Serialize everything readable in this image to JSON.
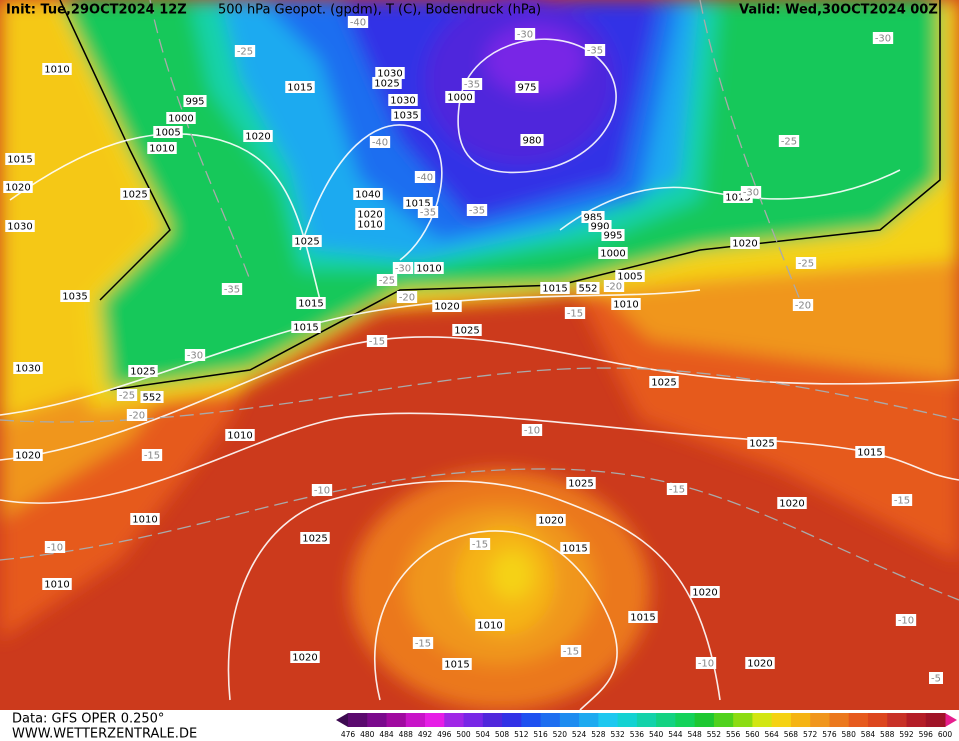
{
  "header": {
    "init": "Init: Tue,29OCT2024 12Z",
    "title": "500 hPa Geopot. (gpdm), T (C), Bodendruck (hPa)",
    "valid": "Valid: Wed,30OCT2024 00Z"
  },
  "footer": {
    "data": "Data: GFS OPER 0.250°",
    "site": "WWW.WETTERZENTRALE.DE"
  },
  "colorbar": {
    "values": [
      476,
      480,
      484,
      488,
      492,
      496,
      500,
      504,
      508,
      512,
      516,
      520,
      524,
      528,
      532,
      536,
      540,
      544,
      548,
      552,
      556,
      560,
      564,
      568,
      572,
      576,
      580,
      584,
      588,
      592,
      596,
      600
    ],
    "colors": [
      "#5a0a6e",
      "#7a0a8c",
      "#a00aa0",
      "#c814c8",
      "#e61ee6",
      "#a028e6",
      "#7828e6",
      "#5028dc",
      "#3232e6",
      "#1e50f0",
      "#1e6ef0",
      "#1e8cf0",
      "#1eaaf0",
      "#1ec8f0",
      "#14d2d2",
      "#14d2aa",
      "#14d282",
      "#14d25a",
      "#1ec832",
      "#50d21e",
      "#8cdc14",
      "#d2e614",
      "#f5d214",
      "#f5b414",
      "#f0961e",
      "#eb781e",
      "#e65a1e",
      "#dc461e",
      "#c83228",
      "#b41e28",
      "#a01428"
    ],
    "low_color": "#3c0a50",
    "high_color": "#e61e8c"
  },
  "pressure_labels": [
    1010,
    995,
    1000,
    1005,
    1010,
    1015,
    1020,
    1025,
    1030,
    1035,
    1030,
    1025,
    1020,
    1010,
    1010,
    1010,
    1020,
    1025,
    1015,
    1020,
    1030,
    1025,
    1030,
    1035,
    1040,
    1020,
    1010,
    1015,
    1025,
    1010,
    1015,
    1015,
    1020,
    1025,
    1000,
    975,
    980,
    985,
    990,
    995,
    1000,
    1005,
    1015,
    552,
    1010,
    1020,
    1015,
    1025,
    1025,
    1015,
    1020,
    1025,
    1020,
    1015,
    1020,
    1015,
    1010,
    1015,
    1020,
    552
  ],
  "temp_labels": [
    -40,
    -25,
    -30,
    -35,
    -30,
    -25,
    -30,
    -25,
    -20,
    -35,
    -40,
    -40,
    -35,
    -35,
    -30,
    -25,
    -20,
    -15,
    -20,
    -35,
    -30,
    -25,
    -20,
    -15,
    -15,
    -10,
    -10,
    -15,
    -15,
    -10,
    -15,
    -15,
    -15,
    -10,
    -10,
    -5
  ]
}
